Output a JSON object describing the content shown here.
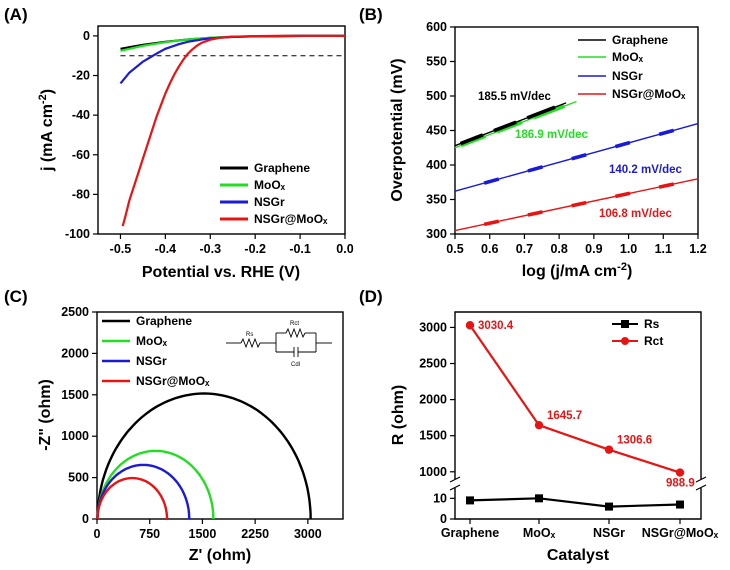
{
  "colors": {
    "black": "#000000",
    "green": "#22dd22",
    "blue": "#1a1ad8",
    "red": "#e81414"
  },
  "chart_data": [
    {
      "panel": "(A)",
      "type": "line",
      "xlabel": "Potential vs. RHE (V)",
      "ylabel_main": "j (mA cm",
      "ylabel_sup": "-2",
      "ylabel_end": ")",
      "xlim": [
        -0.55,
        0.0
      ],
      "ylim": [
        -100,
        5
      ],
      "xticks": [
        "-0.5",
        "-0.4",
        "-0.3",
        "-0.2",
        "-0.1",
        "0.0"
      ],
      "yticks": [
        "0",
        "-20",
        "-40",
        "-60",
        "-80",
        "-100"
      ],
      "reference_line_y": -10,
      "legend": [
        "Graphene",
        "MoOₓ",
        "NSGr",
        "NSGr@MoOₓ"
      ],
      "series": [
        {
          "name": "Graphene",
          "x": [
            -0.5,
            -0.45,
            -0.4,
            -0.35,
            -0.3,
            -0.25,
            -0.2,
            -0.15,
            -0.1,
            0.0
          ],
          "y": [
            -6.5,
            -4.5,
            -3.0,
            -1.8,
            -1.0,
            -0.5,
            -0.2,
            -0.1,
            0.0,
            0.0
          ]
        },
        {
          "name": "MoOₓ",
          "x": [
            -0.5,
            -0.45,
            -0.4,
            -0.35,
            -0.3,
            -0.25,
            -0.2,
            -0.15,
            -0.1,
            0.0
          ],
          "y": [
            -7.5,
            -5.0,
            -3.2,
            -1.8,
            -0.9,
            -0.4,
            -0.2,
            -0.1,
            0.0,
            0.0
          ]
        },
        {
          "name": "NSGr",
          "x": [
            -0.5,
            -0.48,
            -0.45,
            -0.42,
            -0.4,
            -0.37,
            -0.35,
            -0.32,
            -0.3,
            -0.25,
            -0.2,
            -0.15,
            -0.1,
            0.0
          ],
          "y": [
            -24,
            -18.5,
            -13,
            -9,
            -6.5,
            -4.2,
            -3.0,
            -1.8,
            -1.2,
            -0.5,
            -0.2,
            -0.1,
            0.0,
            0.0
          ]
        },
        {
          "name": "NSGr@MoOₓ",
          "x": [
            -0.495,
            -0.49,
            -0.48,
            -0.47,
            -0.46,
            -0.45,
            -0.44,
            -0.43,
            -0.42,
            -0.41,
            -0.4,
            -0.39,
            -0.38,
            -0.37,
            -0.36,
            -0.35,
            -0.34,
            -0.33,
            -0.32,
            -0.3,
            -0.28,
            -0.25,
            -0.2,
            -0.15,
            -0.1,
            0.0
          ],
          "y": [
            -96,
            -92,
            -83,
            -76,
            -69,
            -62,
            -55,
            -48,
            -41,
            -35,
            -29,
            -24,
            -19.5,
            -15.5,
            -12,
            -9,
            -6.8,
            -5,
            -3.6,
            -1.9,
            -1.0,
            -0.4,
            -0.1,
            0.0,
            0.0,
            0.0
          ]
        }
      ]
    },
    {
      "panel": "(B)",
      "type": "line",
      "xlabel_main": "log (j/mA cm",
      "xlabel_sup": "-2",
      "xlabel_end": ")",
      "ylabel": "Overpotential (mV)",
      "xlim": [
        0.5,
        1.2
      ],
      "ylim": [
        300,
        600
      ],
      "xticks": [
        "0.5",
        "0.6",
        "0.7",
        "0.8",
        "0.9",
        "1.0",
        "1.1",
        "1.2"
      ],
      "yticks": [
        "300",
        "350",
        "400",
        "450",
        "500",
        "550",
        "600"
      ],
      "legend": [
        "Graphene",
        "MoOₓ",
        "NSGr",
        "NSGr@MoOₓ"
      ],
      "tafel_slopes": [
        "185.5 mV/dec",
        "186.9 mV/dec",
        "140.2 mV/dec",
        "106.8 mV/dec"
      ],
      "series": [
        {
          "name": "Graphene",
          "x": [
            0.5,
            0.82
          ],
          "y": [
            428,
            490
          ]
        },
        {
          "name": "MoOₓ",
          "x": [
            0.5,
            0.85
          ],
          "y": [
            425,
            492
          ]
        },
        {
          "name": "NSGr",
          "x": [
            0.5,
            1.2
          ],
          "y": [
            362,
            460
          ]
        },
        {
          "name": "NSGr@MoOₓ",
          "x": [
            0.5,
            1.2
          ],
          "y": [
            305,
            380
          ]
        }
      ]
    },
    {
      "panel": "(C)",
      "type": "line",
      "xlabel": "Z' (ohm)",
      "ylabel": "-Z\" (ohm)",
      "xlim": [
        0,
        3500
      ],
      "ylim": [
        0,
        2500
      ],
      "xticks": [
        "0",
        "750",
        "1500",
        "2250",
        "3000"
      ],
      "yticks": [
        "0",
        "500",
        "1000",
        "1500",
        "2000",
        "2500"
      ],
      "legend": [
        "Graphene",
        "MoOₓ",
        "NSGr",
        "NSGr@MoOₓ"
      ],
      "circuit_labels": {
        "rs": "Rs",
        "rct": "Rct",
        "cdl": "Cdl"
      },
      "semicircles": [
        {
          "name": "Graphene",
          "rs": 9,
          "rct": 3030.4
        },
        {
          "name": "MoOₓ",
          "rs": 10,
          "rct": 1645.7
        },
        {
          "name": "NSGr",
          "rs": 6,
          "rct": 1306.6
        },
        {
          "name": "NSGr@MoOₓ",
          "rs": 7,
          "rct": 988.9
        }
      ]
    },
    {
      "panel": "(D)",
      "type": "line",
      "xlabel": "Catalyst",
      "ylabel": "R (ohm)",
      "categories": [
        "Graphene",
        "MoOₓ",
        "NSGr",
        "NSGr@MoOₓ"
      ],
      "upper_yticks": [
        "1000",
        "1500",
        "2000",
        "2500",
        "3000"
      ],
      "lower_yticks": [
        "0",
        "10"
      ],
      "upper_ylim": [
        900,
        3200
      ],
      "lower_ylim": [
        0,
        15
      ],
      "legend": [
        "Rs",
        "Rct"
      ],
      "series": [
        {
          "name": "Rs",
          "values": [
            9,
            10,
            6,
            7
          ]
        },
        {
          "name": "Rct",
          "values": [
            3030.4,
            1645.7,
            1306.6,
            988.9
          ]
        }
      ],
      "data_labels": [
        "3030.4",
        "1645.7",
        "1306.6",
        "988.9"
      ]
    }
  ]
}
